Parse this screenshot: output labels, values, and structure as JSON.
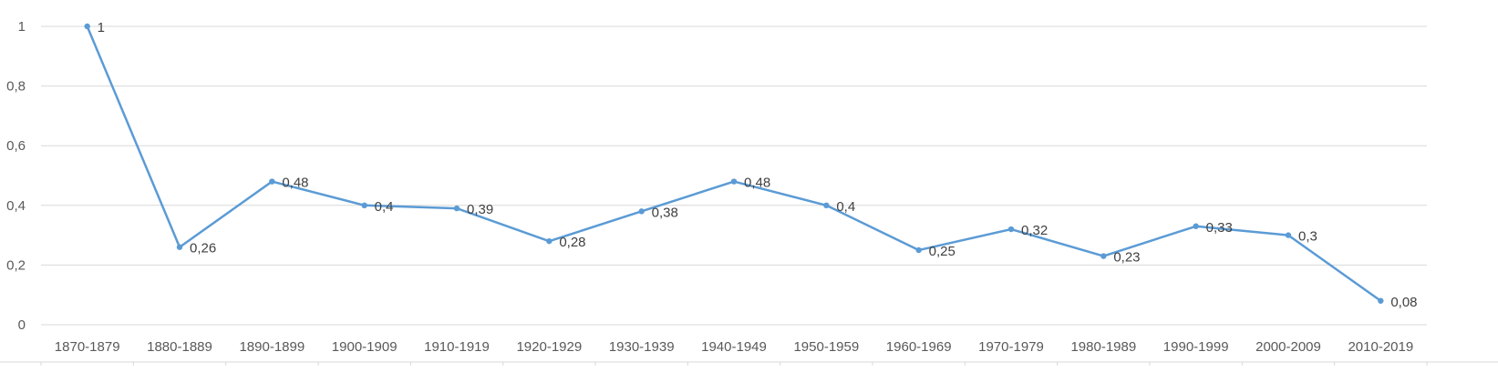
{
  "colors": {
    "series": "#5b9bd5",
    "grid": "#d9d9d9",
    "text": "#595959"
  },
  "chart_data": {
    "type": "line",
    "title": "",
    "xlabel": "",
    "ylabel": "",
    "categories": [
      "1870-1879",
      "1880-1889",
      "1890-1899",
      "1900-1909",
      "1910-1919",
      "1920-1929",
      "1930-1939",
      "1940-1949",
      "1950-1959",
      "1960-1969",
      "1970-1979",
      "1980-1989",
      "1990-1999",
      "2000-2009",
      "2010-2019"
    ],
    "series": [
      {
        "values": [
          1,
          0.26,
          0.48,
          0.4,
          0.39,
          0.28,
          0.38,
          0.48,
          0.4,
          0.25,
          0.32,
          0.23,
          0.33,
          0.3,
          0.08
        ]
      }
    ],
    "data_labels": [
      "1",
      "0,26",
      "0,48",
      "0,4",
      "0,39",
      "0,28",
      "0,38",
      "0,48",
      "0,4",
      "0,25",
      "0,32",
      "0,23",
      "0,33",
      "0,3",
      "0,08"
    ],
    "y_ticks": [
      0,
      0.2,
      0.4,
      0.6,
      0.8,
      1
    ],
    "y_tick_labels": [
      "0",
      "0,2",
      "0,4",
      "0,6",
      "0,8",
      "1"
    ],
    "ylim": [
      0,
      1
    ],
    "grid": true,
    "legend": "none"
  }
}
